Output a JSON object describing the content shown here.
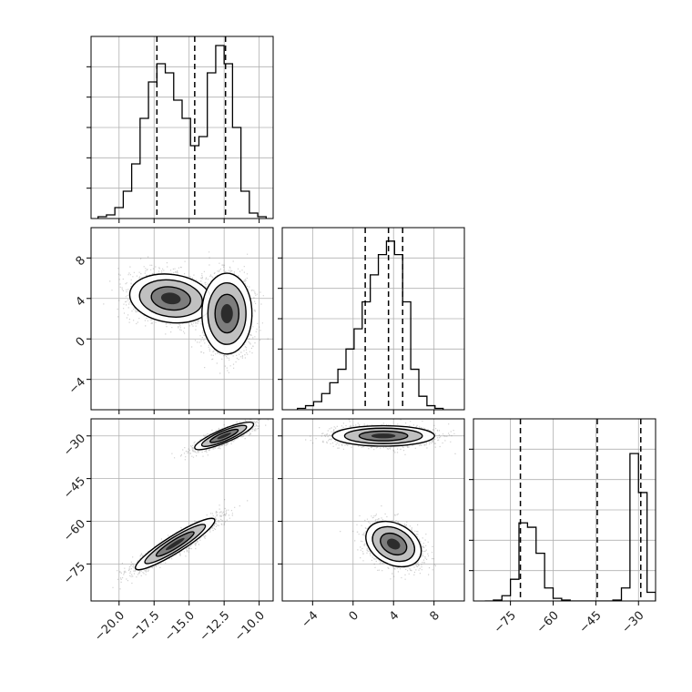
{
  "figure": {
    "type": "corner-plot",
    "parameter_count": 3
  },
  "colors": {
    "axis": "#000000",
    "grid": "#b0b0b0",
    "histogram": "#000000",
    "quantile_line": "#000000",
    "scatter": "#555555",
    "contour_fill": [
      "#ffffff",
      "#bbbbbb",
      "#777777",
      "#111111"
    ]
  },
  "chart_data": {
    "type": "corner",
    "grid": true,
    "variables": [
      {
        "xlim": [
          -22,
          -9
        ],
        "ticks": [
          -20.0,
          -17.5,
          -15.0,
          -12.5,
          -10.0
        ],
        "tick_labels": [
          "−20.0",
          "−17.5",
          "−15.0",
          "−12.5",
          "−10.0"
        ],
        "quantile_lines": [
          -17.3,
          -14.6,
          -12.4
        ],
        "histogram": {
          "bin_edges": [
            -21.5,
            -20.9,
            -20.3,
            -19.7,
            -19.1,
            -18.5,
            -17.9,
            -17.3,
            -16.7,
            -16.1,
            -15.5,
            -14.9,
            -14.3,
            -13.7,
            -13.1,
            -12.5,
            -11.9,
            -11.3,
            -10.7,
            -10.1,
            -9.5
          ],
          "counts": [
            1,
            2,
            6,
            15,
            30,
            55,
            75,
            85,
            80,
            65,
            55,
            40,
            45,
            80,
            95,
            85,
            50,
            15,
            3,
            1
          ]
        },
        "hist_ylim": [
          0,
          100
        ]
      },
      {
        "xlim": [
          -7,
          11
        ],
        "ticks": [
          -4,
          0,
          4,
          8
        ],
        "tick_labels": [
          "−4",
          "0",
          "4",
          "8"
        ],
        "quantile_lines": [
          1.2,
          3.5,
          4.9
        ],
        "histogram": {
          "bin_edges": [
            -5.5,
            -4.7,
            -3.9,
            -3.1,
            -2.3,
            -1.5,
            -0.7,
            0.1,
            0.9,
            1.7,
            2.5,
            3.3,
            4.1,
            4.9,
            5.7,
            6.5,
            7.3,
            8.1,
            8.9
          ],
          "counts": [
            1,
            3,
            6,
            12,
            20,
            30,
            45,
            60,
            80,
            100,
            115,
            125,
            115,
            80,
            30,
            10,
            3,
            1
          ]
        },
        "hist_ylim": [
          0,
          135
        ]
      },
      {
        "xlim": [
          -88,
          -24
        ],
        "ticks": [
          -75,
          -60,
          -45,
          -30
        ],
        "tick_labels": [
          "−75",
          "−60",
          "−45",
          "−30"
        ],
        "quantile_lines": [
          -71.5,
          -44.5,
          -29.2
        ],
        "histogram": {
          "bin_edges": [
            -84,
            -81,
            -78,
            -75,
            -72,
            -69,
            -66,
            -63,
            -60,
            -57,
            -54,
            -51,
            -48,
            -45,
            -42,
            -39,
            -36,
            -33,
            -30,
            -27,
            -24
          ],
          "counts": [
            0,
            1,
            6,
            25,
            90,
            85,
            55,
            15,
            3,
            1,
            0,
            0,
            0,
            0,
            0,
            1,
            15,
            170,
            125,
            10
          ]
        },
        "hist_ylim": [
          0,
          210
        ]
      }
    ],
    "pairs": [
      {
        "x_var": 0,
        "y_var": 1,
        "modes": [
          {
            "cx": -16.3,
            "cy": 4.0,
            "sx": 1.4,
            "sy": 1.15,
            "rho": -0.15,
            "n": 4200
          },
          {
            "cx": -12.3,
            "cy": 2.5,
            "sx": 0.85,
            "sy": 1.9,
            "rho": 0.0,
            "n": 3800
          }
        ]
      },
      {
        "x_var": 0,
        "y_var": 2,
        "modes": [
          {
            "cx": -16.0,
            "cy": -68.0,
            "sx": 1.35,
            "sy": 4.3,
            "rho": 0.92,
            "n": 4200
          },
          {
            "cx": -12.5,
            "cy": -30.0,
            "sx": 1.0,
            "sy": 2.3,
            "rho": 0.85,
            "n": 3800
          }
        ]
      },
      {
        "x_var": 1,
        "y_var": 2,
        "modes": [
          {
            "cx": 3.0,
            "cy": -30.0,
            "sx": 2.4,
            "sy": 1.7,
            "rho": 0.0,
            "n": 4200
          },
          {
            "cx": 4.0,
            "cy": -68.0,
            "sx": 1.3,
            "sy": 3.8,
            "rho": -0.3,
            "n": 3800
          }
        ]
      }
    ],
    "contour_levels_sigma": [
      1.0,
      1.6,
      2.1
    ]
  }
}
